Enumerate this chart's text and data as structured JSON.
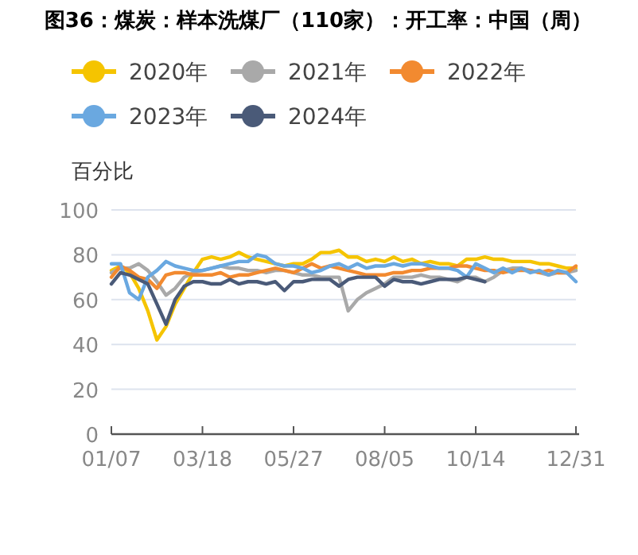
{
  "chart_data": {
    "type": "line",
    "title": "图36：煤炭：样本洗煤厂（110家）：开工率：中国（周）",
    "ylabel": "百分比",
    "legend": "top",
    "grid": "y",
    "ylim": [
      0,
      100
    ],
    "yticks": [
      0,
      20,
      40,
      60,
      80,
      100
    ],
    "categories": [
      "01/07",
      null,
      null,
      null,
      null,
      null,
      null,
      null,
      null,
      null,
      "03/18",
      null,
      null,
      null,
      null,
      null,
      null,
      null,
      null,
      null,
      "05/27",
      null,
      null,
      null,
      null,
      null,
      null,
      null,
      null,
      null,
      "08/05",
      null,
      null,
      null,
      null,
      null,
      null,
      null,
      null,
      null,
      "10/14",
      null,
      null,
      null,
      null,
      null,
      null,
      null,
      null,
      null,
      null,
      "12/31"
    ],
    "series": [
      {
        "name": "2020年",
        "color": "#f5c400",
        "values": [
          73,
          75,
          72,
          65,
          55,
          42,
          48,
          58,
          65,
          72,
          78,
          79,
          78,
          79,
          81,
          79,
          78,
          77,
          76,
          75,
          76,
          76,
          78,
          81,
          81,
          82,
          79,
          79,
          77,
          78,
          77,
          79,
          77,
          78,
          76,
          77,
          76,
          76,
          75,
          78,
          78,
          79,
          78,
          78,
          77,
          77,
          77,
          76,
          76,
          75,
          74,
          74
        ]
      },
      {
        "name": "2021年",
        "color": "#a9a9a9",
        "values": [
          72,
          74,
          74,
          76,
          73,
          68,
          62,
          65,
          70,
          72,
          73,
          74,
          75,
          74,
          74,
          73,
          73,
          72,
          73,
          73,
          72,
          71,
          71,
          70,
          70,
          70,
          55,
          60,
          63,
          65,
          67,
          70,
          70,
          70,
          71,
          70,
          70,
          69,
          68,
          70,
          70,
          68,
          70,
          73,
          74,
          74,
          73,
          72,
          71,
          72,
          72,
          73
        ]
      },
      {
        "name": "2022年",
        "color": "#f28a30",
        "values": [
          70,
          75,
          73,
          70,
          69,
          65,
          71,
          72,
          72,
          71,
          71,
          71,
          72,
          70,
          71,
          71,
          72,
          73,
          74,
          73,
          72,
          74,
          76,
          74,
          75,
          74,
          73,
          72,
          71,
          71,
          71,
          72,
          72,
          73,
          73,
          74,
          74,
          74,
          75,
          75,
          74,
          73,
          73,
          72,
          73,
          73,
          73,
          72,
          73,
          72,
          72,
          75
        ]
      },
      {
        "name": "2023年",
        "color": "#6aa8e0",
        "values": [
          76,
          76,
          63,
          60,
          70,
          73,
          77,
          75,
          74,
          73,
          73,
          74,
          75,
          76,
          77,
          77,
          80,
          79,
          76,
          75,
          75,
          74,
          72,
          73,
          75,
          76,
          74,
          76,
          74,
          75,
          75,
          76,
          75,
          76,
          76,
          75,
          74,
          74,
          73,
          70,
          76,
          74,
          72,
          74,
          72,
          74,
          72,
          73,
          71,
          73,
          72,
          68
        ]
      },
      {
        "name": "2024年",
        "color": "#4a5a78",
        "values": [
          67,
          72,
          71,
          69,
          67,
          58,
          49,
          60,
          66,
          68,
          68,
          67,
          67,
          69,
          67,
          68,
          68,
          67,
          68,
          64,
          68,
          68,
          69,
          69,
          69,
          66,
          69,
          70,
          70,
          70,
          66,
          69,
          68,
          68,
          67,
          68,
          69,
          69,
          69,
          70,
          69,
          68,
          null,
          null,
          null,
          null,
          null,
          null,
          null,
          null,
          null,
          null
        ]
      }
    ]
  }
}
